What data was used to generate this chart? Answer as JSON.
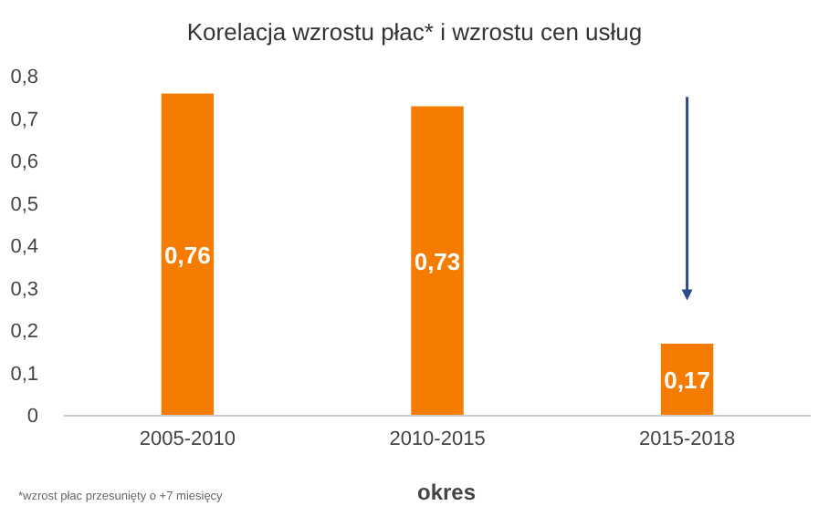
{
  "chart_data": {
    "type": "bar",
    "title": "Korelacja wzrostu płac* i wzrostu cen usług",
    "xlabel": "okres",
    "categories": [
      "2005-2010",
      "2010-2015",
      "2015-2018"
    ],
    "values": [
      0.76,
      0.73,
      0.17
    ],
    "color": "#f57c00",
    "value_labels": [
      "0,76",
      "0,73",
      "0,17"
    ],
    "ylim": [
      0,
      0.8
    ],
    "yticks": [
      0,
      {
        "value": 0.1,
        "label": "0,1"
      },
      {
        "value": 0.2,
        "label": "0,2"
      },
      {
        "value": 0.3,
        "label": "0,3"
      },
      {
        "value": 0.4,
        "label": "0,4"
      },
      {
        "value": 0.5,
        "label": "0,5"
      },
      {
        "value": 0.6,
        "label": "0,6"
      },
      {
        "value": 0.7,
        "label": "0,7"
      },
      {
        "value": 0.8,
        "label": "0,8"
      }
    ],
    "grid": false,
    "annotations": [
      "*wzrost płac przesunięty o +7 miesięcy"
    ]
  }
}
